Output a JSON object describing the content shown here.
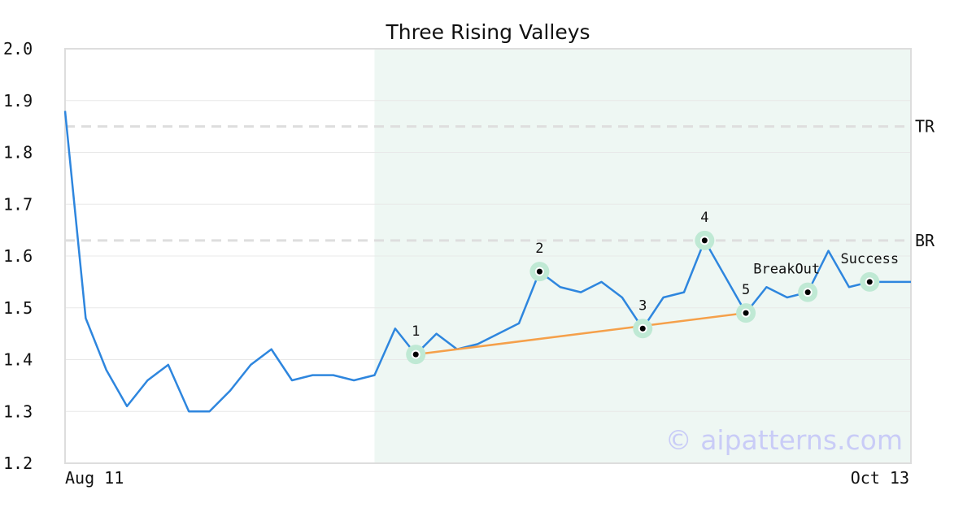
{
  "chart_data": {
    "type": "line",
    "title": "Three Rising Valleys",
    "xlabel": "",
    "ylabel": "",
    "ylim": [
      1.2,
      2.0
    ],
    "y_ticks": [
      "2.0",
      "1.9",
      "1.8",
      "1.7",
      "1.6",
      "1.5",
      "1.4",
      "1.3",
      "1.2"
    ],
    "x_tick_labels": [
      "Aug 11",
      "Oct 13"
    ],
    "grid": true,
    "series": [
      {
        "color": "#2e86de",
        "values": [
          1.88,
          1.48,
          1.38,
          1.31,
          1.36,
          1.39,
          1.3,
          1.3,
          1.34,
          1.39,
          1.42,
          1.36,
          1.37,
          1.37,
          1.36,
          1.37,
          1.46,
          1.41,
          1.45,
          1.42,
          1.43,
          1.45,
          1.47,
          1.57,
          1.54,
          1.53,
          1.55,
          1.52,
          1.46,
          1.52,
          1.53,
          1.63,
          1.56,
          1.49,
          1.54,
          1.52,
          1.53,
          1.61,
          1.54,
          1.55,
          1.55,
          1.55
        ]
      }
    ],
    "highlight_range": {
      "start_index": 15,
      "end_index": 41,
      "color": "#eef7f3"
    },
    "reference_lines": [
      {
        "label": "TR",
        "value": 1.85
      },
      {
        "label": "BR",
        "value": 1.63
      }
    ],
    "trendline": {
      "from_index": 17,
      "to_index": 33,
      "from_value": 1.41,
      "to_value": 1.49,
      "color": "#f5a04a"
    },
    "points": [
      {
        "label": "1",
        "index": 17,
        "value": 1.41,
        "label_pos": "above"
      },
      {
        "label": "2",
        "index": 23,
        "value": 1.57,
        "label_pos": "above"
      },
      {
        "label": "3",
        "index": 28,
        "value": 1.46,
        "label_pos": "above"
      },
      {
        "label": "4",
        "index": 31,
        "value": 1.63,
        "label_pos": "above"
      },
      {
        "label": "5",
        "index": 33,
        "value": 1.49,
        "label_pos": "above"
      },
      {
        "label": "BreakOut",
        "index": 36,
        "value": 1.53,
        "label_pos": "above-left"
      },
      {
        "label": "Success",
        "index": 39,
        "value": 1.55,
        "label_pos": "above"
      }
    ],
    "watermark": "© aipatterns.com"
  }
}
